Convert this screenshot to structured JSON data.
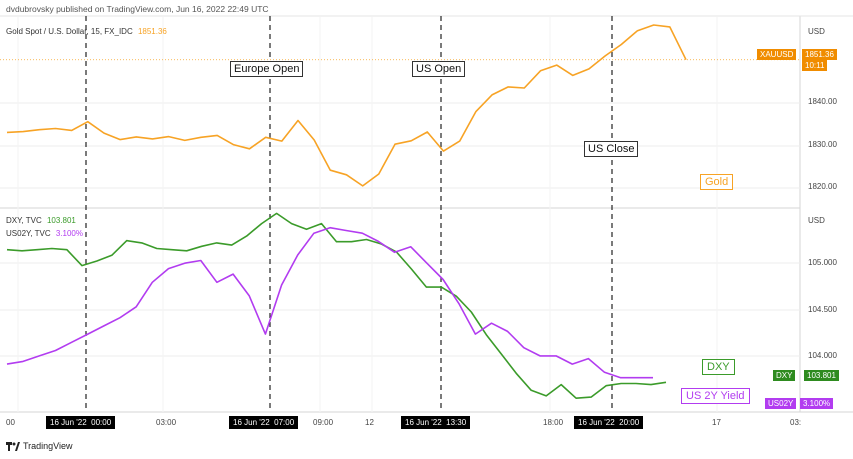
{
  "publisher": "dvdubrovsky published on TradingView.com, Jun 16, 2022 22:49 UTC",
  "colors": {
    "gold": "#f7a325",
    "dxy": "#3b9b2a",
    "us02y": "#b23cf0",
    "grid": "#eeeeee"
  },
  "chart_data": [
    {
      "type": "line",
      "legend_text": "Gold Spot / U.S. Dollar, 15, FX_IDC",
      "legend_value": "1851.36",
      "currency_label": "USD",
      "y_ticks": [
        "1840.00",
        "1830.00",
        "1820.00"
      ],
      "ylim": [
        1814.7,
        1861.8
      ],
      "last_badge": {
        "symbol": "XAUUSD",
        "value": "1851.36",
        "time": "10:11"
      },
      "series_tag": "Gold",
      "x": [
        0,
        0.5,
        1,
        1.5,
        2,
        2.5,
        3,
        3.5,
        4,
        4.5,
        5,
        5.5,
        6,
        6.5,
        7,
        7.5,
        8,
        8.5,
        9,
        9.5,
        10,
        10.5,
        11,
        11.5,
        12,
        12.5,
        13,
        13.5,
        14,
        14.5,
        15,
        15.5,
        16,
        16.5,
        17,
        17.5,
        18,
        18.5,
        19,
        19.5,
        20,
        20.5,
        21
      ],
      "series": [
        {
          "values": [
            1832.4,
            1832.6,
            1833.1,
            1833.4,
            1832.9,
            1835.2,
            1832.2,
            1830.5,
            1831.2,
            1830.7,
            1831.3,
            1830.3,
            1831.1,
            1831.6,
            1829.2,
            1828.1,
            1831.1,
            1830.1,
            1835.5,
            1830.4,
            1822.5,
            1821.3,
            1818.4,
            1821.5,
            1829.3,
            1830.2,
            1832.5,
            1827.5,
            1830.1,
            1837.8,
            1842.2,
            1844.3,
            1844.0,
            1848.5,
            1850.0,
            1847.3,
            1849.0,
            1852.4,
            1855.4,
            1859.0,
            1860.5,
            1860.0,
            1851.4
          ]
        }
      ]
    },
    {
      "type": "line",
      "legend": [
        {
          "name": "DXY, TVC",
          "value": "103.801"
        },
        {
          "name": "US02Y, TVC",
          "value": "3.100%"
        }
      ],
      "currency_label": "USD",
      "y_ticks": [
        "105.000",
        "104.500",
        "104.000"
      ],
      "ylim": [
        103.6,
        105.32
      ],
      "x_ticks": [
        "00",
        "03:00",
        "09:00",
        "12",
        "18:00",
        "17",
        "03:"
      ],
      "time_boxes": [
        "16 Jun '22",
        "00:00",
        "16 Jun '22",
        "07:00",
        "16 Jun '22",
        "13:30",
        "16 Jun '22",
        "20:00"
      ],
      "series": [
        {
          "name": "DXY",
          "tag": "DXY",
          "last_badge": {
            "symbol": "DXY",
            "value": "103.801"
          },
          "values": [
            104.97,
            104.96,
            104.97,
            104.98,
            104.97,
            104.83,
            104.87,
            104.92,
            105.05,
            105.03,
            104.98,
            104.97,
            104.96,
            105.0,
            105.03,
            105.01,
            105.09,
            105.2,
            105.29,
            105.2,
            105.15,
            105.2,
            105.04,
            105.04,
            105.06,
            105.02,
            104.95,
            104.8,
            104.64,
            104.64,
            104.56,
            104.42,
            104.22,
            104.05,
            103.88,
            103.73,
            103.68,
            103.78,
            103.66,
            103.67,
            103.77,
            103.79,
            103.79,
            103.78,
            103.8
          ]
        },
        {
          "name": "US02Y",
          "tag": "US 2Y Yield",
          "last_badge": {
            "symbol": "US02Y",
            "value": "3.100%"
          },
          "values": [
            3.15,
            3.16,
            3.18,
            3.2,
            3.23,
            3.26,
            3.29,
            3.32,
            3.36,
            3.45,
            3.5,
            3.52,
            3.53,
            3.45,
            3.48,
            3.4,
            3.26,
            3.44,
            3.55,
            3.63,
            3.65,
            3.64,
            3.63,
            3.6,
            3.56,
            3.58,
            3.52,
            3.46,
            3.37,
            3.26,
            3.3,
            3.27,
            3.21,
            3.18,
            3.18,
            3.15,
            3.17,
            3.12,
            3.1,
            3.1,
            3.1
          ]
        }
      ]
    }
  ],
  "annotations": [
    "Europe Open",
    "US Open",
    "US Close"
  ],
  "footer_logo": "TradingView"
}
